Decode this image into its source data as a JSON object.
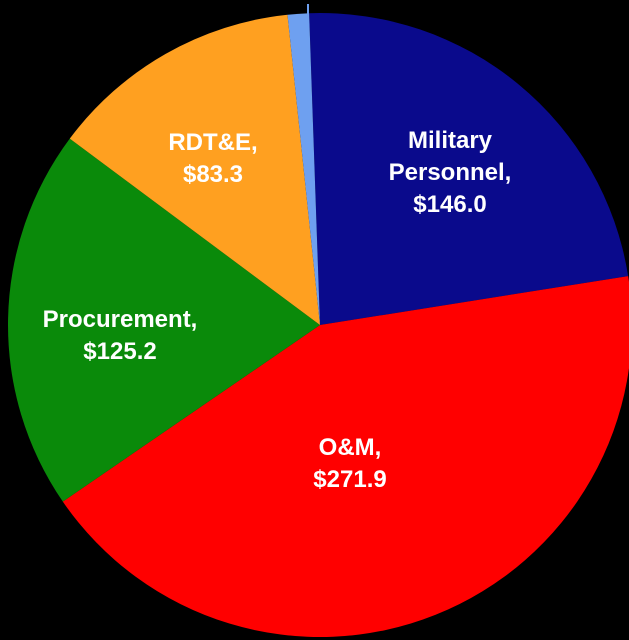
{
  "chart_data": {
    "type": "pie",
    "slices": [
      {
        "name": "Military Personnel",
        "label_lines": [
          "Military",
          "Personnel,",
          "$146.0"
        ],
        "value": 146.0,
        "color": "#0a0a8c"
      },
      {
        "name": "O&M",
        "label_lines": [
          "O&M,",
          "$271.9"
        ],
        "value": 271.9,
        "color": "#ff0000"
      },
      {
        "name": "Procurement",
        "label_lines": [
          "Procurement,",
          "$125.2"
        ],
        "value": 125.2,
        "color": "#0a8a0a"
      },
      {
        "name": "RDT&E",
        "label_lines": [
          "RDT&E,",
          "$83.3"
        ],
        "value": 83.3,
        "color": "#ffa020"
      },
      {
        "name": "",
        "label_lines": [],
        "value": 7.0,
        "color": "#6ea0f0"
      }
    ]
  }
}
